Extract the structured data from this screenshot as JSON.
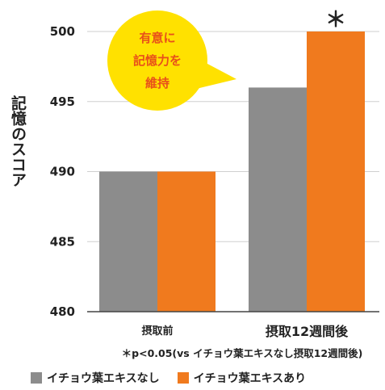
{
  "chart_data": {
    "type": "bar",
    "ylabel": "記憶のスコア",
    "ylim": [
      480,
      500
    ],
    "yticks": [
      480,
      485,
      490,
      495,
      500
    ],
    "categories": [
      "摂取前",
      "摂取12週間後"
    ],
    "series": [
      {
        "name": "イチョウ葉エキスなし",
        "values": [
          490,
          496
        ],
        "color": "#8c8c8c"
      },
      {
        "name": "イチョウ葉エキスあり",
        "values": [
          490,
          500
        ],
        "color": "#f07a1e"
      }
    ],
    "grid": true,
    "significance_mark": "＊",
    "note": "＊p<0.05(vs イチョウ葉エキスなし摂取12週間後)",
    "legend_position": "bottom-left",
    "callout": {
      "lines": [
        "有意に",
        "記憶力を",
        "維持"
      ],
      "color": "#ffe100",
      "text_color": "#e8501a"
    }
  }
}
